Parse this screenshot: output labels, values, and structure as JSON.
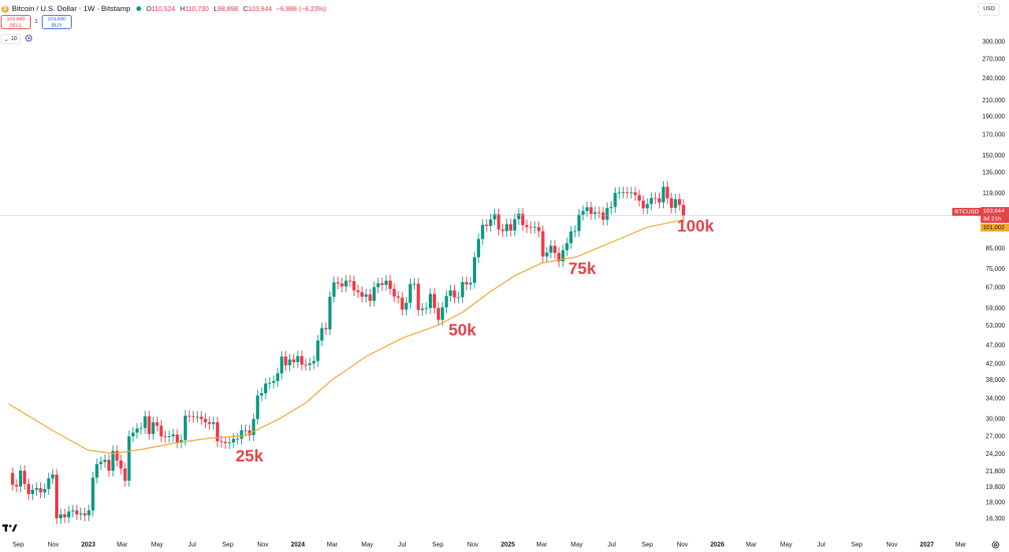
{
  "header": {
    "title": "Bitcoin / U.S. Dollar · 1W · Bitstamp",
    "ohlc": {
      "o_label": "O",
      "o": "110,524",
      "h_label": "H",
      "h": "110,730",
      "l_label": "L",
      "l": "98,898",
      "c_label": "C",
      "c": "103,644",
      "change": "−6,886 (−6.23%)"
    },
    "sell_price": "103,689",
    "sell_label": "SELL",
    "spread": "1",
    "buy_price": "103,690",
    "buy_label": "BUY",
    "interval_count": "10",
    "icons": [
      "bitcoin-icon",
      "live-dot-icon",
      "chevron-down-icon",
      "sync-icon"
    ]
  },
  "currency": "USD",
  "price_tags": {
    "symbol": "BTCUSD",
    "price": "103,644",
    "countdown": "3d 21h",
    "ma_value": "101,002"
  },
  "annotations": [
    "25k",
    "50k",
    "75k",
    "100k"
  ],
  "colors": {
    "up": "#089981",
    "down": "#f23645",
    "ma": "#f0a830",
    "annotation": "#e2454a",
    "last_price_line": "#b2b5be"
  },
  "chart_data": {
    "type": "candlestick",
    "title": "Bitcoin / U.S. Dollar · 1W · Bitstamp",
    "y_scale": "log",
    "y_ticks": [
      300000,
      270000,
      240000,
      210000,
      190000,
      170000,
      150000,
      135000,
      119000,
      107000,
      85000,
      75000,
      67000,
      59000,
      53000,
      47000,
      42000,
      38000,
      34000,
      30000,
      27000,
      24200,
      21800,
      19800,
      18000,
      16300
    ],
    "y_tick_labels": [
      "300,000",
      "270,000",
      "240,000",
      "210,000",
      "190,000",
      "170,000",
      "150,000",
      "135,000",
      "119,000",
      "107,000",
      "85,000",
      "75,000",
      "67,000",
      "59,000",
      "53,000",
      "47,000",
      "42,000",
      "38,000",
      "34,000",
      "30,000",
      "27,000",
      "24,200",
      "21,800",
      "19,800",
      "18,000",
      "16,300"
    ],
    "x_ticks": [
      {
        "date": "2022-09-01",
        "label": "Sep",
        "bold": false
      },
      {
        "date": "2022-11-01",
        "label": "Nov",
        "bold": false
      },
      {
        "date": "2023-01-01",
        "label": "2023",
        "bold": true
      },
      {
        "date": "2023-03-01",
        "label": "Mar",
        "bold": false
      },
      {
        "date": "2023-05-01",
        "label": "May",
        "bold": false
      },
      {
        "date": "2023-07-01",
        "label": "Jul",
        "bold": false
      },
      {
        "date": "2023-09-01",
        "label": "Sep",
        "bold": false
      },
      {
        "date": "2023-11-01",
        "label": "Nov",
        "bold": false
      },
      {
        "date": "2024-01-01",
        "label": "2024",
        "bold": true
      },
      {
        "date": "2024-03-01",
        "label": "Mar",
        "bold": false
      },
      {
        "date": "2024-05-01",
        "label": "May",
        "bold": false
      },
      {
        "date": "2024-07-01",
        "label": "Jul",
        "bold": false
      },
      {
        "date": "2024-09-01",
        "label": "Sep",
        "bold": false
      },
      {
        "date": "2024-11-01",
        "label": "Nov",
        "bold": false
      },
      {
        "date": "2025-01-01",
        "label": "2025",
        "bold": true
      },
      {
        "date": "2025-03-01",
        "label": "Mar",
        "bold": false
      },
      {
        "date": "2025-05-01",
        "label": "May",
        "bold": false
      },
      {
        "date": "2025-07-01",
        "label": "Jul",
        "bold": false
      },
      {
        "date": "2025-09-01",
        "label": "Sep",
        "bold": false
      },
      {
        "date": "2025-11-01",
        "label": "Nov",
        "bold": false
      },
      {
        "date": "2026-01-01",
        "label": "2026",
        "bold": true
      },
      {
        "date": "2026-03-01",
        "label": "Mar",
        "bold": false
      },
      {
        "date": "2026-05-01",
        "label": "May",
        "bold": false
      },
      {
        "date": "2026-07-01",
        "label": "Jul",
        "bold": false
      },
      {
        "date": "2026-09-01",
        "label": "Sep",
        "bold": false
      },
      {
        "date": "2026-11-01",
        "label": "Nov",
        "bold": false
      },
      {
        "date": "2027-01-01",
        "label": "2027",
        "bold": true
      },
      {
        "date": "2027-03-01",
        "label": "Mar",
        "bold": false
      }
    ],
    "last_price": 103644,
    "ma_last": 101002,
    "weekly_closes": [
      {
        "date": "2022-08-15",
        "c": 21500
      },
      {
        "date": "2022-08-22",
        "c": 20000
      },
      {
        "date": "2022-08-29",
        "c": 19800
      },
      {
        "date": "2022-09-05",
        "c": 21800
      },
      {
        "date": "2022-09-12",
        "c": 20100
      },
      {
        "date": "2022-09-19",
        "c": 18900
      },
      {
        "date": "2022-09-26",
        "c": 19400
      },
      {
        "date": "2022-10-03",
        "c": 19600
      },
      {
        "date": "2022-10-10",
        "c": 19100
      },
      {
        "date": "2022-10-17",
        "c": 19500
      },
      {
        "date": "2022-10-24",
        "c": 20800
      },
      {
        "date": "2022-10-31",
        "c": 21300
      },
      {
        "date": "2022-11-07",
        "c": 16300
      },
      {
        "date": "2022-11-14",
        "c": 16700
      },
      {
        "date": "2022-11-21",
        "c": 16400
      },
      {
        "date": "2022-11-28",
        "c": 17000
      },
      {
        "date": "2022-12-05",
        "c": 17100
      },
      {
        "date": "2022-12-12",
        "c": 16700
      },
      {
        "date": "2022-12-19",
        "c": 16800
      },
      {
        "date": "2022-12-26",
        "c": 16600
      },
      {
        "date": "2023-01-02",
        "c": 17100
      },
      {
        "date": "2023-01-09",
        "c": 20900
      },
      {
        "date": "2023-01-16",
        "c": 22700
      },
      {
        "date": "2023-01-23",
        "c": 23000
      },
      {
        "date": "2023-01-30",
        "c": 23300
      },
      {
        "date": "2023-02-06",
        "c": 21800
      },
      {
        "date": "2023-02-13",
        "c": 24600
      },
      {
        "date": "2023-02-20",
        "c": 23200
      },
      {
        "date": "2023-02-27",
        "c": 22100
      },
      {
        "date": "2023-03-06",
        "c": 20500
      },
      {
        "date": "2023-03-13",
        "c": 26900
      },
      {
        "date": "2023-03-20",
        "c": 27500
      },
      {
        "date": "2023-03-27",
        "c": 28200
      },
      {
        "date": "2023-04-03",
        "c": 28300
      },
      {
        "date": "2023-04-10",
        "c": 30400
      },
      {
        "date": "2023-04-17",
        "c": 27300
      },
      {
        "date": "2023-04-24",
        "c": 29300
      },
      {
        "date": "2023-05-01",
        "c": 28700
      },
      {
        "date": "2023-05-08",
        "c": 26900
      },
      {
        "date": "2023-05-15",
        "c": 26800
      },
      {
        "date": "2023-05-22",
        "c": 26900
      },
      {
        "date": "2023-05-29",
        "c": 27200
      },
      {
        "date": "2023-06-05",
        "c": 25900
      },
      {
        "date": "2023-06-12",
        "c": 26300
      },
      {
        "date": "2023-06-19",
        "c": 30500
      },
      {
        "date": "2023-06-26",
        "c": 30400
      },
      {
        "date": "2023-07-03",
        "c": 30300
      },
      {
        "date": "2023-07-10",
        "c": 30300
      },
      {
        "date": "2023-07-17",
        "c": 29900
      },
      {
        "date": "2023-07-24",
        "c": 29300
      },
      {
        "date": "2023-07-31",
        "c": 29000
      },
      {
        "date": "2023-08-07",
        "c": 29300
      },
      {
        "date": "2023-08-14",
        "c": 26100
      },
      {
        "date": "2023-08-21",
        "c": 26000
      },
      {
        "date": "2023-08-28",
        "c": 25800
      },
      {
        "date": "2023-09-04",
        "c": 25900
      },
      {
        "date": "2023-09-11",
        "c": 26500
      },
      {
        "date": "2023-09-18",
        "c": 26500
      },
      {
        "date": "2023-09-25",
        "c": 27900
      },
      {
        "date": "2023-10-02",
        "c": 27900
      },
      {
        "date": "2023-10-09",
        "c": 27100
      },
      {
        "date": "2023-10-16",
        "c": 29900
      },
      {
        "date": "2023-10-23",
        "c": 34500
      },
      {
        "date": "2023-10-30",
        "c": 35000
      },
      {
        "date": "2023-11-06",
        "c": 37100
      },
      {
        "date": "2023-11-13",
        "c": 37300
      },
      {
        "date": "2023-11-20",
        "c": 37700
      },
      {
        "date": "2023-11-27",
        "c": 39500
      },
      {
        "date": "2023-12-04",
        "c": 43800
      },
      {
        "date": "2023-12-11",
        "c": 41500
      },
      {
        "date": "2023-12-18",
        "c": 43000
      },
      {
        "date": "2023-12-25",
        "c": 42300
      },
      {
        "date": "2024-01-01",
        "c": 43900
      },
      {
        "date": "2024-01-08",
        "c": 41700
      },
      {
        "date": "2024-01-15",
        "c": 41600
      },
      {
        "date": "2024-01-22",
        "c": 42000
      },
      {
        "date": "2024-01-29",
        "c": 42600
      },
      {
        "date": "2024-02-05",
        "c": 48300
      },
      {
        "date": "2024-02-12",
        "c": 52100
      },
      {
        "date": "2024-02-19",
        "c": 51700
      },
      {
        "date": "2024-02-26",
        "c": 63100
      },
      {
        "date": "2024-03-04",
        "c": 68900
      },
      {
        "date": "2024-03-11",
        "c": 68400
      },
      {
        "date": "2024-03-18",
        "c": 67200
      },
      {
        "date": "2024-03-25",
        "c": 69600
      },
      {
        "date": "2024-04-01",
        "c": 69400
      },
      {
        "date": "2024-04-08",
        "c": 65600
      },
      {
        "date": "2024-04-15",
        "c": 64900
      },
      {
        "date": "2024-04-22",
        "c": 63100
      },
      {
        "date": "2024-04-29",
        "c": 64000
      },
      {
        "date": "2024-05-06",
        "c": 61500
      },
      {
        "date": "2024-05-13",
        "c": 66900
      },
      {
        "date": "2024-05-20",
        "c": 68500
      },
      {
        "date": "2024-05-27",
        "c": 67800
      },
      {
        "date": "2024-06-03",
        "c": 69600
      },
      {
        "date": "2024-06-10",
        "c": 66200
      },
      {
        "date": "2024-06-17",
        "c": 63200
      },
      {
        "date": "2024-06-24",
        "c": 62700
      },
      {
        "date": "2024-07-01",
        "c": 58300
      },
      {
        "date": "2024-07-08",
        "c": 60800
      },
      {
        "date": "2024-07-15",
        "c": 68200
      },
      {
        "date": "2024-07-22",
        "c": 68300
      },
      {
        "date": "2024-07-29",
        "c": 58200
      },
      {
        "date": "2024-08-05",
        "c": 58700
      },
      {
        "date": "2024-08-12",
        "c": 58900
      },
      {
        "date": "2024-08-19",
        "c": 64200
      },
      {
        "date": "2024-08-26",
        "c": 58900
      },
      {
        "date": "2024-09-02",
        "c": 54800
      },
      {
        "date": "2024-09-09",
        "c": 59100
      },
      {
        "date": "2024-09-16",
        "c": 63400
      },
      {
        "date": "2024-09-23",
        "c": 65600
      },
      {
        "date": "2024-09-30",
        "c": 62800
      },
      {
        "date": "2024-10-07",
        "c": 62900
      },
      {
        "date": "2024-10-14",
        "c": 69000
      },
      {
        "date": "2024-10-21",
        "c": 68000
      },
      {
        "date": "2024-10-28",
        "c": 68700
      },
      {
        "date": "2024-11-04",
        "c": 80300
      },
      {
        "date": "2024-11-11",
        "c": 89800
      },
      {
        "date": "2024-11-18",
        "c": 97900
      },
      {
        "date": "2024-11-25",
        "c": 97200
      },
      {
        "date": "2024-12-02",
        "c": 101200
      },
      {
        "date": "2024-12-09",
        "c": 104400
      },
      {
        "date": "2024-12-16",
        "c": 95100
      },
      {
        "date": "2024-12-23",
        "c": 94200
      },
      {
        "date": "2024-12-30",
        "c": 98300
      },
      {
        "date": "2025-01-06",
        "c": 94500
      },
      {
        "date": "2025-01-13",
        "c": 101300
      },
      {
        "date": "2025-01-20",
        "c": 104700
      },
      {
        "date": "2025-01-27",
        "c": 97700
      },
      {
        "date": "2025-02-03",
        "c": 96500
      },
      {
        "date": "2025-02-10",
        "c": 96200
      },
      {
        "date": "2025-02-17",
        "c": 96600
      },
      {
        "date": "2025-02-24",
        "c": 94200
      },
      {
        "date": "2025-03-03",
        "c": 80700
      },
      {
        "date": "2025-03-10",
        "c": 82600
      },
      {
        "date": "2025-03-17",
        "c": 86100
      },
      {
        "date": "2025-03-24",
        "c": 82400
      },
      {
        "date": "2025-03-31",
        "c": 78300
      },
      {
        "date": "2025-04-07",
        "c": 83800
      },
      {
        "date": "2025-04-14",
        "c": 87500
      },
      {
        "date": "2025-04-21",
        "c": 94000
      },
      {
        "date": "2025-04-28",
        "c": 94300
      },
      {
        "date": "2025-05-05",
        "c": 104100
      },
      {
        "date": "2025-05-12",
        "c": 106500
      },
      {
        "date": "2025-05-19",
        "c": 109000
      },
      {
        "date": "2025-05-26",
        "c": 104600
      },
      {
        "date": "2025-06-02",
        "c": 105700
      },
      {
        "date": "2025-06-09",
        "c": 105600
      },
      {
        "date": "2025-06-16",
        "c": 101000
      },
      {
        "date": "2025-06-23",
        "c": 108400
      },
      {
        "date": "2025-06-30",
        "c": 109200
      },
      {
        "date": "2025-07-07",
        "c": 119000
      },
      {
        "date": "2025-07-14",
        "c": 119300
      },
      {
        "date": "2025-07-21",
        "c": 119400
      },
      {
        "date": "2025-07-28",
        "c": 119100
      },
      {
        "date": "2025-08-04",
        "c": 119300
      },
      {
        "date": "2025-08-11",
        "c": 117400
      },
      {
        "date": "2025-08-18",
        "c": 113500
      },
      {
        "date": "2025-08-25",
        "c": 108300
      },
      {
        "date": "2025-09-01",
        "c": 111100
      },
      {
        "date": "2025-09-08",
        "c": 115300
      },
      {
        "date": "2025-09-15",
        "c": 115200
      },
      {
        "date": "2025-09-22",
        "c": 112200
      },
      {
        "date": "2025-09-29",
        "c": 123500
      },
      {
        "date": "2025-10-06",
        "c": 115100
      },
      {
        "date": "2025-10-13",
        "c": 108600
      },
      {
        "date": "2025-10-20",
        "c": 114500
      },
      {
        "date": "2025-10-27",
        "c": 110524
      },
      {
        "date": "2025-11-03",
        "c": 103644
      }
    ],
    "ma_line": [
      {
        "date": "2022-08-15",
        "v": 32800
      },
      {
        "date": "2022-11-01",
        "v": 27800
      },
      {
        "date": "2023-01-01",
        "v": 24700
      },
      {
        "date": "2023-02-15",
        "v": 24200
      },
      {
        "date": "2023-04-01",
        "v": 24800
      },
      {
        "date": "2023-06-01",
        "v": 25800
      },
      {
        "date": "2023-08-01",
        "v": 26600
      },
      {
        "date": "2023-10-01",
        "v": 27000
      },
      {
        "date": "2023-12-01",
        "v": 30000
      },
      {
        "date": "2024-01-15",
        "v": 33000
      },
      {
        "date": "2024-03-01",
        "v": 38000
      },
      {
        "date": "2024-05-01",
        "v": 44000
      },
      {
        "date": "2024-07-01",
        "v": 49000
      },
      {
        "date": "2024-09-01",
        "v": 53000
      },
      {
        "date": "2024-10-15",
        "v": 57500
      },
      {
        "date": "2024-12-01",
        "v": 65000
      },
      {
        "date": "2025-01-15",
        "v": 72000
      },
      {
        "date": "2025-03-01",
        "v": 77500
      },
      {
        "date": "2025-05-01",
        "v": 80500
      },
      {
        "date": "2025-07-01",
        "v": 88000
      },
      {
        "date": "2025-09-01",
        "v": 96500
      },
      {
        "date": "2025-11-03",
        "v": 101002
      }
    ]
  }
}
